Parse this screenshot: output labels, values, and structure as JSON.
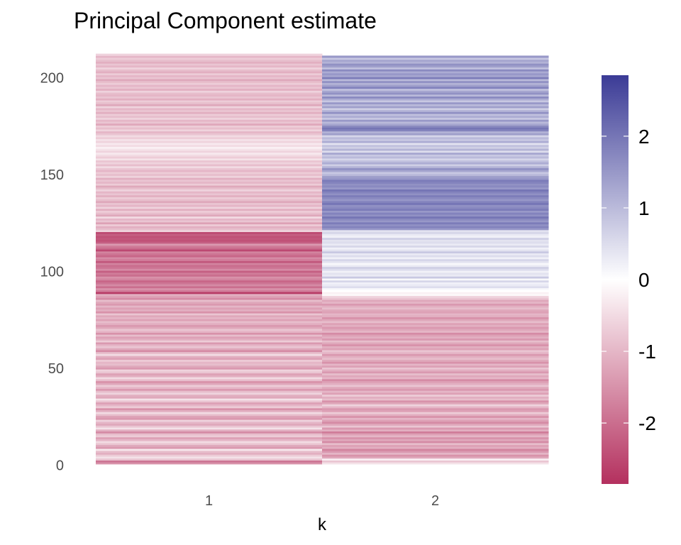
{
  "chart_data": {
    "type": "heatmap",
    "title": "Principal Component estimate",
    "xlabel": "k",
    "ylabel": "",
    "x_categories": [
      "1",
      "2"
    ],
    "y_range": [
      1,
      206
    ],
    "y_ticks": [
      0,
      50,
      100,
      150,
      200
    ],
    "grid": false,
    "legend": {
      "placement": "right",
      "type": "colorbar",
      "range": [
        -2.85,
        2.85
      ],
      "ticks": [
        -2,
        -1,
        0,
        1,
        2
      ],
      "tick_labels": [
        "-2",
        "-1",
        "0",
        "1",
        "2"
      ]
    },
    "colors": {
      "low": "#b4305e",
      "mid": "#ffffff",
      "high": "#3b3b96"
    },
    "series": [
      {
        "x": "1",
        "values": [
          -1.5,
          -1.9,
          -0.8,
          -0.4,
          -0.7,
          -1.1,
          -0.9,
          -0.3,
          -1.4,
          -1.2,
          -0.8,
          -0.5,
          -1.0,
          -1.3,
          -0.7,
          -0.9,
          -1.6,
          -1.1,
          -0.4,
          -0.8,
          -1.2,
          -1.0,
          -0.6,
          -1.4,
          -1.3,
          -0.9,
          -0.5,
          -1.1,
          -1.5,
          -0.7,
          -1.0,
          -1.3,
          -0.8,
          -0.4,
          -1.2,
          -1.1,
          -0.6,
          -0.9,
          -1.4,
          -1.0,
          -0.7,
          -1.2,
          -1.5,
          -0.9,
          -0.5,
          -1.1,
          -1.3,
          -0.8,
          -0.6,
          -1.4,
          -1.2,
          -0.9,
          -1.0,
          -0.7,
          -1.3,
          -1.1,
          -0.5,
          -0.9,
          -1.6,
          -1.2,
          -0.8,
          -1.0,
          -1.4,
          -0.7,
          -1.1,
          -1.3,
          -0.9,
          -1.5,
          -1.0,
          -0.8,
          -1.2,
          -1.4,
          -1.1,
          -0.9,
          -1.3,
          -1.0,
          -1.2,
          -0.8,
          -1.5,
          -1.1,
          -1.3,
          -1.0,
          -1.4,
          -1.2,
          -0.9,
          -1.6,
          -1.3,
          -1.1,
          -2.7,
          -1.8,
          -1.5,
          -2.0,
          -1.6,
          -1.9,
          -2.1,
          -1.7,
          -1.5,
          -2.0,
          -1.8,
          -2.2,
          -1.6,
          -1.9,
          -2.0,
          -1.7,
          -2.3,
          -1.8,
          -1.6,
          -2.1,
          -1.9,
          -1.7,
          -2.5,
          -2.0,
          -1.8,
          -1.4,
          -2.2,
          -2.4,
          -2.3,
          -2.4,
          -2.2,
          -2.5,
          -0.6,
          -0.9,
          -1.1,
          -0.7,
          -1.3,
          -0.8,
          -1.0,
          -0.5,
          -1.2,
          -0.9,
          -0.7,
          -1.1,
          -0.6,
          -1.0,
          -0.8,
          -1.2,
          -0.9,
          -0.7,
          -1.1,
          -0.8,
          -1.0,
          -0.6,
          -0.9,
          -1.2,
          -0.7,
          -1.0,
          -0.8,
          -1.1,
          -0.6,
          -0.9,
          -0.7,
          -1.0,
          -0.8,
          -0.5,
          -0.9,
          -0.6,
          -0.8,
          -0.4,
          -0.7,
          -0.5,
          -0.3,
          -0.6,
          -0.4,
          -0.2,
          -0.5,
          -0.3,
          -0.6,
          -0.4,
          -0.7,
          -0.5,
          -0.8,
          -1.0,
          -0.6,
          -0.9,
          -0.7,
          -1.2,
          -0.8,
          -1.0,
          -0.6,
          -0.9,
          -0.7,
          -1.1,
          -0.8,
          -1.0,
          -0.6,
          -1.2,
          -0.9,
          -0.7,
          -1.1,
          -0.8,
          -1.0,
          -0.9,
          -0.6,
          -1.1,
          -0.8,
          -1.0,
          -0.7,
          -0.9,
          -1.2,
          -0.8,
          -1.0,
          -0.7,
          -1.1,
          -0.9,
          -0.6,
          -1.0,
          -0.8,
          -1.1,
          -0.9,
          -0.7,
          -1.0,
          -0.6
        ]
      },
      {
        "x": "2",
        "values": [
          -0.4,
          -0.8,
          -0.2,
          -1.2,
          -1.5,
          -1.0,
          -1.4,
          -1.7,
          -1.1,
          -1.3,
          -0.9,
          -1.6,
          -1.2,
          -1.5,
          -1.0,
          -1.3,
          -1.8,
          -1.1,
          -1.4,
          -0.8,
          -1.2,
          -1.6,
          -1.3,
          -1.0,
          -1.5,
          -1.1,
          -0.7,
          -1.3,
          -1.4,
          -1.0,
          -0.6,
          -1.2,
          -1.5,
          -0.9,
          -1.1,
          -0.7,
          -1.3,
          -1.0,
          -1.4,
          -1.2,
          -0.8,
          -1.1,
          -1.3,
          -1.6,
          -1.0,
          -1.2,
          -0.9,
          -1.4,
          -1.1,
          -0.8,
          -1.3,
          -1.0,
          -1.5,
          -1.2,
          -0.9,
          -1.1,
          -1.4,
          -1.0,
          -0.8,
          -1.3,
          -1.1,
          -1.5,
          -1.2,
          -0.9,
          -1.4,
          -1.1,
          -1.3,
          -1.6,
          -1.0,
          -1.2,
          -1.4,
          -1.1,
          -1.3,
          -0.9,
          -1.2,
          -1.5,
          -1.1,
          -1.0,
          -1.3,
          -1.2,
          -0.9,
          -1.1,
          -1.4,
          -1.0,
          -1.2,
          -0.8,
          -0.6,
          -0.1,
          -0.2,
          0.0,
          0.1,
          0.5,
          0.3,
          0.2,
          0.6,
          0.1,
          0.8,
          0.3,
          0.4,
          0.2,
          0.5,
          0.7,
          0.3,
          0.1,
          0.4,
          0.6,
          0.2,
          0.5,
          0.3,
          0.8,
          0.4,
          0.2,
          0.6,
          0.3,
          0.5,
          0.4,
          0.7,
          0.2,
          0.3,
          0.6,
          0.4,
          1.5,
          1.8,
          1.6,
          1.9,
          1.5,
          1.7,
          2.0,
          1.6,
          1.8,
          1.5,
          1.9,
          1.7,
          1.6,
          2.0,
          1.8,
          1.5,
          1.7,
          1.9,
          1.6,
          1.8,
          2.0,
          1.5,
          1.7,
          1.6,
          1.8,
          1.9,
          1.5,
          1.4,
          1.0,
          0.8,
          1.3,
          1.6,
          1.1,
          0.7,
          1.2,
          0.9,
          0.6,
          1.0,
          0.8,
          1.3,
          0.5,
          1.1,
          0.7,
          0.9,
          0.4,
          1.2,
          0.8,
          1.0,
          0.6,
          1.4,
          1.1,
          1.8,
          2.0,
          1.7,
          1.3,
          1.0,
          1.5,
          0.8,
          1.2,
          0.9,
          1.6,
          1.1,
          0.7,
          1.4,
          1.0,
          1.5,
          0.8,
          1.2,
          1.7,
          1.0,
          1.6,
          1.3,
          0.9,
          1.8,
          1.4,
          1.1,
          1.6,
          1.0,
          1.9,
          1.3,
          1.5,
          1.2,
          1.7,
          0.9,
          1.4,
          1.6,
          1.1,
          1.3,
          0.8,
          1.5
        ]
      }
    ]
  }
}
